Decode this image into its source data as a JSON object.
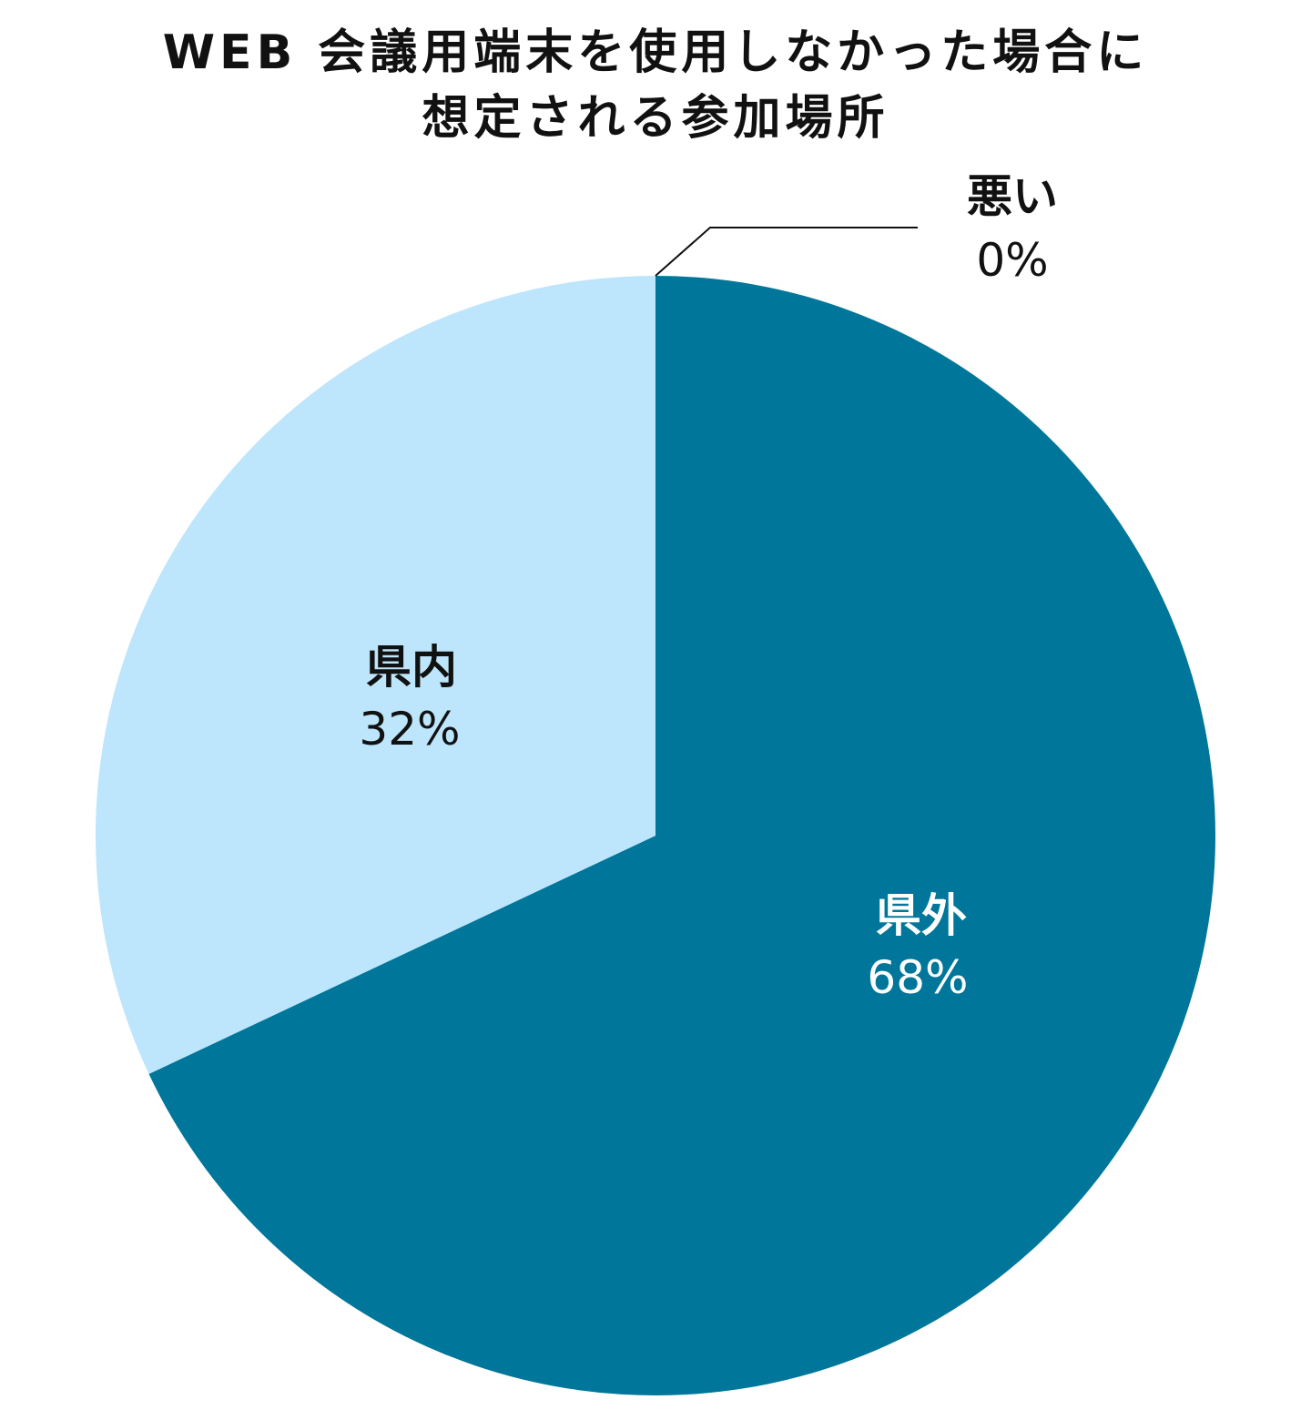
{
  "title": {
    "line1": "WEB 会議用端末を使用しなかった場合に",
    "line2": "想定される参加場所"
  },
  "colors": {
    "kengai": "#00769A",
    "kennai": "#BDE5FB",
    "leader": "#111111",
    "text_dark": "#111111",
    "text_light": "#ffffff"
  },
  "chart_data": {
    "type": "pie",
    "title": "WEB 会議用端末を使用しなかった場合に想定される参加場所",
    "slices": [
      {
        "label": "悪い",
        "value": 0,
        "value_label": "0%"
      },
      {
        "label": "県外",
        "value": 68,
        "value_label": "68%"
      },
      {
        "label": "県内",
        "value": 32,
        "value_label": "32%"
      }
    ],
    "start": "12 o'clock",
    "direction": "clockwise"
  }
}
